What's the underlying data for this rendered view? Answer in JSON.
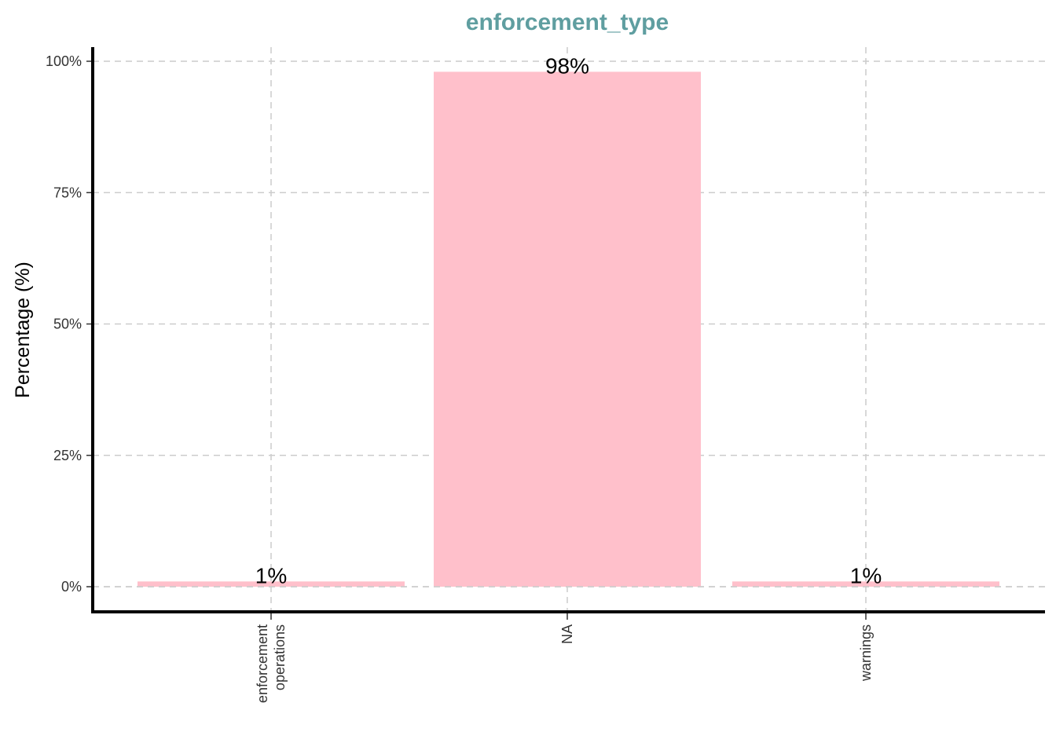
{
  "chart_data": {
    "type": "bar",
    "title": "enforcement_type",
    "xlabel": "",
    "ylabel": "Percentage (%)",
    "categories": [
      [
        "enforcement",
        "operations"
      ],
      [
        "NA"
      ],
      [
        "warnings"
      ]
    ],
    "values": [
      1,
      98,
      1
    ],
    "data_labels": [
      "1%",
      "98%",
      "1%"
    ],
    "ylim": [
      0,
      100
    ],
    "yticks": [
      0,
      25,
      50,
      75,
      100
    ],
    "ytick_labels": [
      "0%",
      "25%",
      "50%",
      "75%",
      "100%"
    ],
    "grid": true,
    "legend": "none",
    "colors": {
      "bar": "#ffc0cb",
      "title": "#5f9ea0",
      "grid": "#cccccc",
      "axis": "#000000"
    }
  }
}
